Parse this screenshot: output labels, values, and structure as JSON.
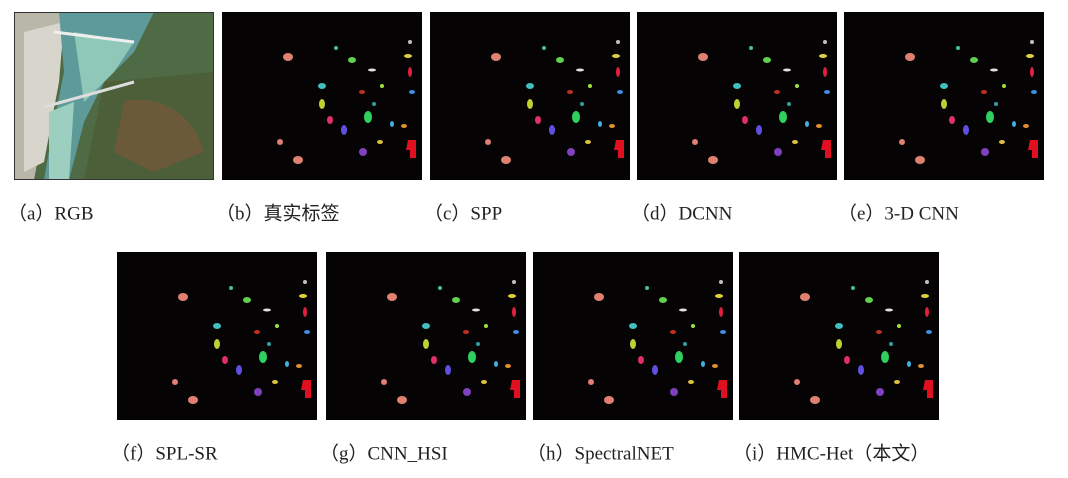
{
  "panels": [
    {
      "caption": "（a）RGB"
    },
    {
      "caption": "（b）真实标签"
    },
    {
      "caption": "（c）SPP"
    },
    {
      "caption": "（d）DCNN"
    },
    {
      "caption": "（e）3-D CNN"
    },
    {
      "caption": "（f）SPL-SR"
    },
    {
      "caption": "（g）CNN_HSI"
    },
    {
      "caption": "（h）SpectralNET"
    },
    {
      "caption": "（i）HMC-Het（本文）"
    }
  ]
}
